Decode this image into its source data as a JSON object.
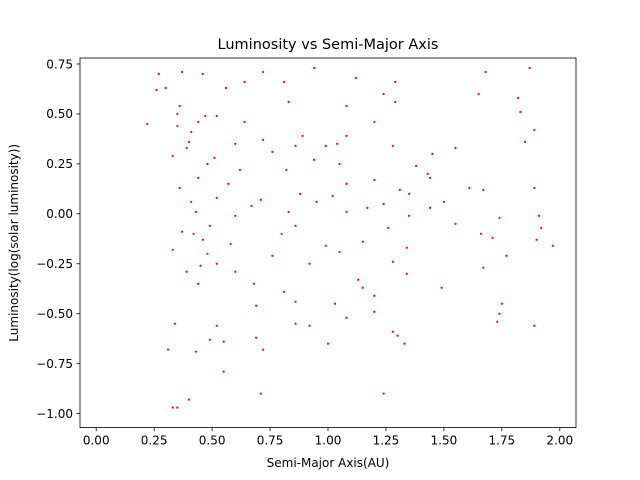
{
  "chart_data": {
    "type": "scatter",
    "title": "Luminosity vs Semi-Major Axis",
    "xlabel": "Semi-Major Axis(AU)",
    "ylabel": "Luminosity(log(solar luminosity))",
    "xlim": [
      -0.07,
      2.07
    ],
    "ylim": [
      -1.07,
      0.78
    ],
    "xticks": [
      {
        "value": 0.0,
        "label": "0.00"
      },
      {
        "value": 0.25,
        "label": "0.25"
      },
      {
        "value": 0.5,
        "label": "0.50"
      },
      {
        "value": 0.75,
        "label": "0.75"
      },
      {
        "value": 1.0,
        "label": "1.00"
      },
      {
        "value": 1.25,
        "label": "1.25"
      },
      {
        "value": 1.5,
        "label": "1.50"
      },
      {
        "value": 1.75,
        "label": "1.75"
      },
      {
        "value": 2.0,
        "label": "2.00"
      }
    ],
    "yticks": [
      {
        "value": -1.0,
        "label": "−1.00"
      },
      {
        "value": -0.75,
        "label": "−0.75"
      },
      {
        "value": -0.5,
        "label": "−0.50"
      },
      {
        "value": -0.25,
        "label": "−0.25"
      },
      {
        "value": 0.0,
        "label": "0.00"
      },
      {
        "value": 0.25,
        "label": "0.25"
      },
      {
        "value": 0.5,
        "label": "0.50"
      },
      {
        "value": 0.75,
        "label": "0.75"
      }
    ],
    "grid": false,
    "marker_color": "#ff0000",
    "series": [
      {
        "points": [
          [
            0.27,
            0.7
          ],
          [
            0.37,
            0.71
          ],
          [
            0.46,
            0.7
          ],
          [
            0.64,
            0.66
          ],
          [
            0.72,
            0.71
          ],
          [
            0.81,
            0.66
          ],
          [
            0.94,
            0.73
          ],
          [
            1.12,
            0.68
          ],
          [
            1.29,
            0.66
          ],
          [
            1.68,
            0.71
          ],
          [
            1.87,
            0.73
          ],
          [
            1.24,
            0.6
          ],
          [
            1.65,
            0.6
          ],
          [
            0.56,
            0.63
          ],
          [
            1.82,
            0.58
          ],
          [
            1.29,
            0.56
          ],
          [
            0.83,
            0.56
          ],
          [
            1.08,
            0.54
          ],
          [
            0.36,
            0.54
          ],
          [
            1.83,
            0.51
          ],
          [
            0.52,
            0.49
          ],
          [
            0.47,
            0.49
          ],
          [
            1.2,
            0.46
          ],
          [
            0.64,
            0.46
          ],
          [
            0.35,
            0.44
          ],
          [
            1.89,
            0.42
          ],
          [
            1.08,
            0.39
          ],
          [
            0.89,
            0.39
          ],
          [
            0.72,
            0.37
          ],
          [
            0.4,
            0.36
          ],
          [
            0.6,
            0.35
          ],
          [
            0.86,
            0.34
          ],
          [
            0.99,
            0.34
          ],
          [
            1.04,
            0.35
          ],
          [
            1.28,
            0.34
          ],
          [
            1.55,
            0.33
          ],
          [
            1.85,
            0.36
          ],
          [
            0.76,
            0.31
          ],
          [
            1.45,
            0.3
          ],
          [
            0.51,
            0.28
          ],
          [
            0.94,
            0.27
          ],
          [
            1.05,
            0.25
          ],
          [
            1.38,
            0.24
          ],
          [
            0.62,
            0.22
          ],
          [
            0.82,
            0.22
          ],
          [
            1.43,
            0.2
          ],
          [
            1.44,
            0.18
          ],
          [
            1.2,
            0.17
          ],
          [
            1.08,
            0.15
          ],
          [
            0.57,
            0.15
          ],
          [
            1.61,
            0.13
          ],
          [
            1.31,
            0.12
          ],
          [
            1.35,
            0.1
          ],
          [
            0.88,
            0.1
          ],
          [
            1.02,
            0.09
          ],
          [
            1.67,
            0.12
          ],
          [
            1.89,
            0.13
          ],
          [
            0.52,
            0.08
          ],
          [
            0.71,
            0.07
          ],
          [
            0.95,
            0.06
          ],
          [
            1.24,
            0.05
          ],
          [
            1.44,
            0.03
          ],
          [
            1.5,
            0.06
          ],
          [
            0.67,
            0.04
          ],
          [
            1.17,
            0.03
          ],
          [
            0.43,
            0.01
          ],
          [
            0.83,
            0.01
          ],
          [
            1.08,
            0.01
          ],
          [
            0.6,
            -0.01
          ],
          [
            1.35,
            -0.01
          ],
          [
            1.74,
            -0.02
          ],
          [
            1.91,
            -0.01
          ],
          [
            1.55,
            -0.05
          ],
          [
            0.86,
            -0.06
          ],
          [
            1.26,
            -0.07
          ],
          [
            0.49,
            -0.06
          ],
          [
            1.92,
            -0.07
          ],
          [
            0.42,
            -0.1
          ],
          [
            0.8,
            -0.1
          ],
          [
            1.66,
            -0.1
          ],
          [
            1.71,
            -0.12
          ],
          [
            1.9,
            -0.13
          ],
          [
            1.97,
            -0.16
          ],
          [
            1.15,
            -0.14
          ],
          [
            0.58,
            -0.15
          ],
          [
            0.99,
            -0.16
          ],
          [
            1.34,
            -0.17
          ],
          [
            1.05,
            -0.19
          ],
          [
            0.48,
            -0.2
          ],
          [
            0.76,
            -0.21
          ],
          [
            1.77,
            -0.21
          ],
          [
            1.28,
            -0.24
          ],
          [
            0.92,
            -0.25
          ],
          [
            0.45,
            -0.26
          ],
          [
            1.67,
            -0.27
          ],
          [
            0.6,
            -0.29
          ],
          [
            1.34,
            -0.3
          ],
          [
            1.13,
            -0.33
          ],
          [
            0.68,
            -0.35
          ],
          [
            1.15,
            -0.37
          ],
          [
            1.49,
            -0.37
          ],
          [
            0.81,
            -0.39
          ],
          [
            1.2,
            -0.41
          ],
          [
            0.86,
            -0.44
          ],
          [
            1.03,
            -0.45
          ],
          [
            1.75,
            -0.45
          ],
          [
            0.69,
            -0.46
          ],
          [
            1.2,
            -0.49
          ],
          [
            1.74,
            -0.5
          ],
          [
            1.08,
            -0.52
          ],
          [
            0.86,
            -0.55
          ],
          [
            0.92,
            -0.56
          ],
          [
            1.73,
            -0.54
          ],
          [
            1.89,
            -0.56
          ],
          [
            0.34,
            -0.55
          ],
          [
            1.28,
            -0.59
          ],
          [
            1.3,
            -0.61
          ],
          [
            0.69,
            -0.62
          ],
          [
            0.49,
            -0.63
          ],
          [
            1.0,
            -0.65
          ],
          [
            0.55,
            -0.64
          ],
          [
            1.33,
            -0.65
          ],
          [
            0.72,
            -0.68
          ],
          [
            0.43,
            -0.69
          ],
          [
            0.55,
            -0.79
          ],
          [
            0.71,
            -0.9
          ],
          [
            1.24,
            -0.9
          ],
          [
            0.4,
            -0.93
          ],
          [
            0.33,
            -0.97
          ],
          [
            0.35,
            -0.97
          ],
          [
            0.52,
            -0.56
          ],
          [
            0.31,
            -0.68
          ],
          [
            0.44,
            -0.35
          ],
          [
            0.39,
            -0.29
          ],
          [
            0.52,
            -0.25
          ],
          [
            0.33,
            -0.18
          ],
          [
            0.46,
            -0.13
          ],
          [
            0.37,
            -0.09
          ],
          [
            0.41,
            0.06
          ],
          [
            0.36,
            0.13
          ],
          [
            0.44,
            0.18
          ],
          [
            0.48,
            0.25
          ],
          [
            0.33,
            0.29
          ],
          [
            0.39,
            0.33
          ],
          [
            0.41,
            0.41
          ],
          [
            0.44,
            0.46
          ],
          [
            0.35,
            0.5
          ],
          [
            0.3,
            0.63
          ],
          [
            0.26,
            0.62
          ],
          [
            0.22,
            0.45
          ]
        ]
      }
    ]
  }
}
